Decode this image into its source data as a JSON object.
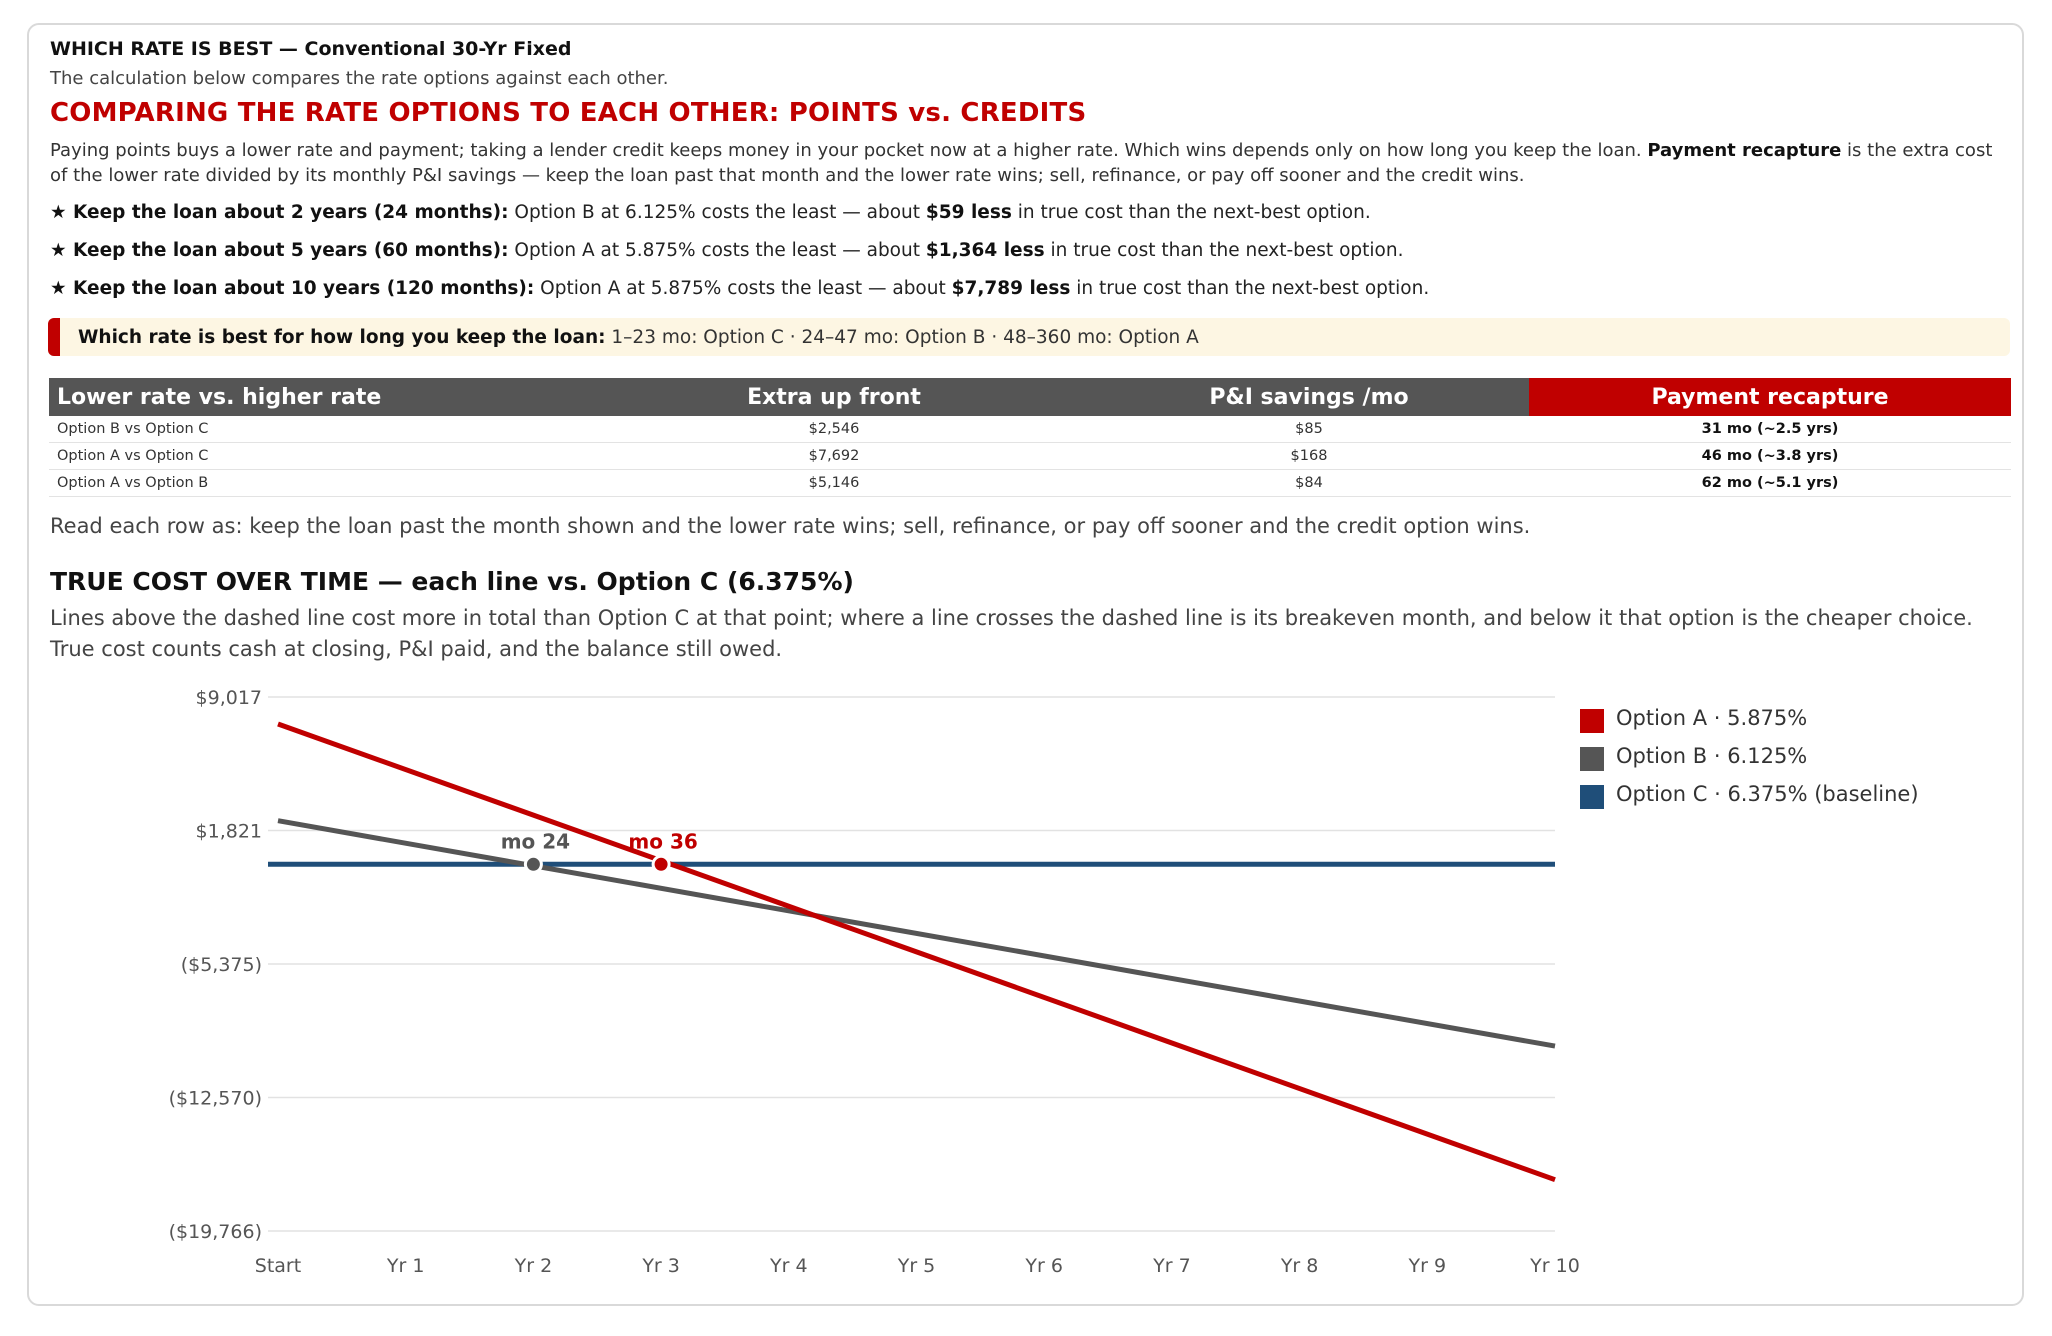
{
  "header": {
    "kicker": "WHICH RATE IS BEST — Conventional 30-Yr Fixed",
    "subtitle": "The calculation below compares the rate options against each other.",
    "headline": "COMPARING THE RATE OPTIONS TO EACH OTHER: POINTS vs. CREDITS"
  },
  "intro": {
    "text_1": "Paying points buys a lower rate and payment; taking a lender credit keeps money in your pocket now at a higher rate. Which wins depends only on how long you keep the loan. ",
    "term": "Payment recapture",
    "text_2": " is the extra cost of the lower rate divided by its monthly P&I savings — keep the loan past that month and the lower rate wins; sell, refinance, or pay off sooner and the credit wins."
  },
  "bullets": [
    {
      "lead": "★ Keep the loan about 2 years (24 months):",
      "mid": " Option B at 6.125% costs the least — about ",
      "amount": "$59 less",
      "tail": " in true cost than the next-best option."
    },
    {
      "lead": "★ Keep the loan about 5 years (60 months):",
      "mid": " Option A at 5.875% costs the least — about ",
      "amount": "$1,364 less",
      "tail": " in true cost than the next-best option."
    },
    {
      "lead": "★ Keep the loan about 10 years (120 months):",
      "mid": " Option A at 5.875% costs the least — about ",
      "amount": "$7,789 less",
      "tail": " in true cost than the next-best option."
    }
  ],
  "callout": {
    "label": "Which rate is best for how long you keep the loan:",
    "text": " 1–23 mo: Option C · 24–47 mo: Option B · 48–360 mo: Option A"
  },
  "table": {
    "headers": [
      "Lower rate vs. higher rate",
      "Extra up front",
      "P&I savings /mo",
      "Payment recapture"
    ],
    "rows": [
      [
        "Option B vs Option C",
        "$2,546",
        "$85",
        "31 mo (~2.5 yrs)"
      ],
      [
        "Option A vs Option C",
        "$7,692",
        "$168",
        "46 mo (~3.8 yrs)"
      ],
      [
        "Option A vs Option B",
        "$5,146",
        "$84",
        "62 mo (~5.1 yrs)"
      ]
    ],
    "note": "Read each row as: keep the loan past the month shown and the lower rate wins; sell, refinance, or pay off sooner and the credit option wins."
  },
  "chart_section": {
    "title": "TRUE COST OVER TIME — each line vs. Option C (6.375%)",
    "subtitle": "Lines above the dashed line cost more in total than Option C at that point; where a line crosses the dashed line is its breakeven month, and below it that option is the cheaper choice. True cost counts cash at closing, P&I paid, and the balance still owed."
  },
  "chart_data": {
    "type": "line",
    "x_unit": "months",
    "x_ticks": [
      {
        "month": 0,
        "label": "Start"
      },
      {
        "month": 12,
        "label": "Yr 1"
      },
      {
        "month": 24,
        "label": "Yr 2"
      },
      {
        "month": 36,
        "label": "Yr 3"
      },
      {
        "month": 48,
        "label": "Yr 4"
      },
      {
        "month": 60,
        "label": "Yr 5"
      },
      {
        "month": 72,
        "label": "Yr 6"
      },
      {
        "month": 84,
        "label": "Yr 7"
      },
      {
        "month": 96,
        "label": "Yr 8"
      },
      {
        "month": 108,
        "label": "Yr 9"
      },
      {
        "month": 120,
        "label": "Yr 10"
      }
    ],
    "y_ticks": [
      {
        "value": 9017,
        "label": "$9,017"
      },
      {
        "value": 1821,
        "label": "$1,821"
      },
      {
        "value": -5375,
        "label": "($5,375)"
      },
      {
        "value": -12570,
        "label": "($12,570)"
      },
      {
        "value": -19766,
        "label": "($19,766)"
      }
    ],
    "ylim": [
      -19766,
      9017
    ],
    "xlim": [
      0,
      120
    ],
    "grid": true,
    "legend_position": "right",
    "series": [
      {
        "name": "Option A · 5.875%",
        "color": "#c00000",
        "points": [
          [
            0,
            7560
          ],
          [
            120,
            -17000
          ]
        ]
      },
      {
        "name": "Option B · 6.125%",
        "color": "#555555",
        "points": [
          [
            0,
            2350
          ],
          [
            120,
            -9800
          ]
        ]
      },
      {
        "name": "Option C · 6.375% (baseline)",
        "color": "#1f4e79",
        "points": [
          [
            0,
            0
          ],
          [
            120,
            0
          ]
        ]
      }
    ],
    "markers": [
      {
        "month": 24,
        "value": 0,
        "label": "mo 24",
        "color": "#555555"
      },
      {
        "month": 36,
        "value": 0,
        "label": "mo 36",
        "color": "#c00000"
      }
    ]
  }
}
